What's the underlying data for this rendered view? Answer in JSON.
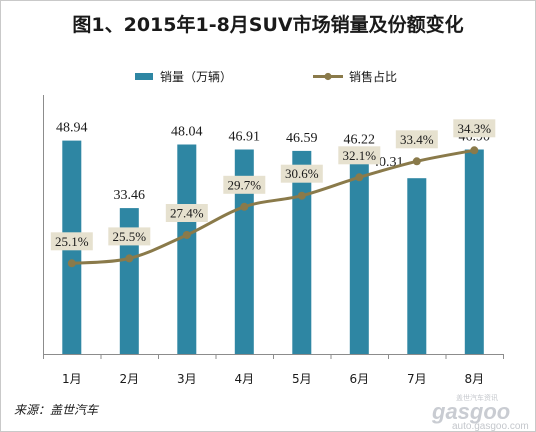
{
  "chart_data": {
    "type": "bar",
    "title": "图1、2015年1-8月SUV市场销量及份额变化",
    "categories": [
      "1月",
      "2月",
      "3月",
      "4月",
      "5月",
      "6月",
      "7月",
      "8月"
    ],
    "series": [
      {
        "name": "销量（万辆）",
        "type": "bar",
        "axis": "left",
        "color": "#2e86a3",
        "values": [
          48.94,
          33.46,
          48.04,
          46.91,
          46.59,
          46.22,
          40.31,
          46.9
        ],
        "labels": [
          "48.94",
          "33.46",
          "48.04",
          "46.91",
          "46.59",
          "46.22",
          "40.31",
          "46.90"
        ]
      },
      {
        "name": "销售占比",
        "type": "line",
        "axis": "right",
        "color": "#8a7a4a",
        "values": [
          25.1,
          25.5,
          27.4,
          29.7,
          30.6,
          32.1,
          33.4,
          34.3
        ],
        "labels": [
          "25.1%",
          "25.5%",
          "27.4%",
          "29.7%",
          "30.6%",
          "32.1%",
          "33.4%",
          "34.3%"
        ]
      }
    ],
    "ylim": [
      0,
      56
    ],
    "y2lim": [
      18,
      36
    ],
    "legend_position": "top",
    "grid": false
  },
  "source": "来源：盖世汽车",
  "watermark": {
    "logo": "gasgoo",
    "cn": "盖世汽车资讯",
    "url": "auto.gasgoo.com"
  },
  "colors": {
    "bar": "#2e86a3",
    "line": "#8a7a4a",
    "label_box": "#e6e1cf",
    "axis": "#8c8c8c"
  }
}
